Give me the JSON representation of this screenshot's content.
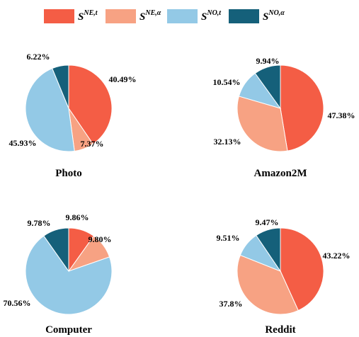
{
  "colors": {
    "ne_t": "#f45d45",
    "ne_alpha": "#f7a283",
    "no_t": "#93c9e6",
    "no_alpha": "#15607a"
  },
  "legend": [
    {
      "base": "S",
      "sup": "NE,t",
      "color_key": "ne_t"
    },
    {
      "base": "S",
      "sup": "NE,α",
      "color_key": "ne_alpha"
    },
    {
      "base": "S",
      "sup": "NO,t",
      "color_key": "no_t"
    },
    {
      "base": "S",
      "sup": "NO,α",
      "color_key": "no_alpha"
    }
  ],
  "chart_data": [
    {
      "type": "pie",
      "title": "Photo",
      "labels": [
        "S^{NE,t}",
        "S^{NE,α}",
        "S^{NO,t}",
        "S^{NO,α}"
      ],
      "values": [
        40.49,
        7.37,
        45.93,
        6.22
      ],
      "value_labels": [
        "40.49%",
        "7.37%",
        "45.93%",
        "6.22%"
      ]
    },
    {
      "type": "pie",
      "title": "Amazon2M",
      "labels": [
        "S^{NE,t}",
        "S^{NE,α}",
        "S^{NO,t}",
        "S^{NO,α}"
      ],
      "values": [
        47.38,
        32.13,
        10.54,
        9.94
      ],
      "value_labels": [
        "47.38%",
        "32.13%",
        "10.54%",
        "9.94%"
      ]
    },
    {
      "type": "pie",
      "title": "Computer",
      "labels": [
        "S^{NE,t}",
        "S^{NE,α}",
        "S^{NO,t}",
        "S^{NO,α}"
      ],
      "values": [
        9.86,
        9.8,
        70.56,
        9.78
      ],
      "value_labels": [
        "9.86%",
        "9.80%",
        "70.56%",
        "9.78%"
      ]
    },
    {
      "type": "pie",
      "title": "Reddit",
      "labels": [
        "S^{NE,t}",
        "S^{NE,α}",
        "S^{NO,t}",
        "S^{NO,α}"
      ],
      "values": [
        43.22,
        37.8,
        9.51,
        9.47
      ],
      "value_labels": [
        "43.22%",
        "37.8%",
        "9.51%",
        "9.47%"
      ]
    }
  ]
}
